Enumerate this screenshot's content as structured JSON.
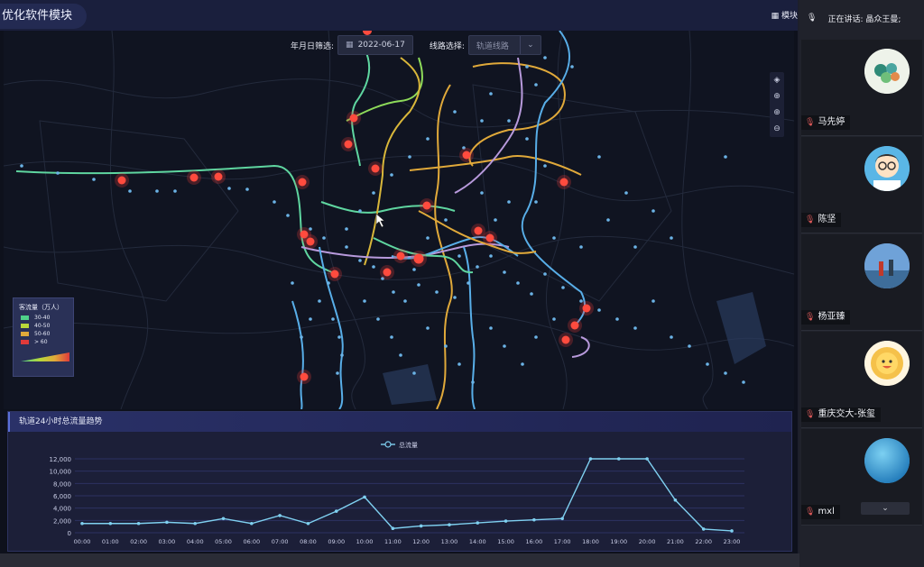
{
  "header": {
    "title": "优化软件模块",
    "module_label": "模块"
  },
  "filters": {
    "date_label": "年月日筛选:",
    "date_value": "2022-06-17",
    "line_label": "线路选择:",
    "line_placeholder": "轨道线路"
  },
  "legend": {
    "title": "客流量（万人）",
    "items": [
      {
        "label": "30-40",
        "color": "#4fd08a"
      },
      {
        "label": "40-50",
        "color": "#b8d83a"
      },
      {
        "label": "50-60",
        "color": "#e0a93a"
      },
      {
        "label": "> 60",
        "color": "#e03a3a"
      }
    ]
  },
  "map_icons": [
    "layers-icon",
    "locate-icon",
    "zoom-in-icon",
    "zoom-out-icon"
  ],
  "trend_panel": {
    "title": "轨道24小时总流量趋势"
  },
  "chart_data": {
    "type": "line",
    "legend": "总流量",
    "legend_position": "top-center",
    "categories": [
      "00:00",
      "01:00",
      "02:00",
      "03:00",
      "04:00",
      "05:00",
      "06:00",
      "07:00",
      "08:00",
      "09:00",
      "10:00",
      "11:00",
      "12:00",
      "13:00",
      "14:00",
      "15:00",
      "16:00",
      "17:00",
      "18:00",
      "19:00",
      "20:00",
      "21:00",
      "22:00",
      "23:00"
    ],
    "series": [
      {
        "name": "总流量",
        "values": [
          1500,
          1500,
          1500,
          1700,
          1500,
          2300,
          1500,
          2800,
          1500,
          3500,
          5800,
          700,
          1100,
          1300,
          1600,
          1900,
          2100,
          2300,
          12000,
          12000,
          12000,
          5300,
          600,
          300
        ]
      }
    ],
    "yticks": [
      "0",
      "2,000",
      "4,000",
      "6,000",
      "8,000",
      "10,000",
      "12,000"
    ],
    "ylim": [
      0,
      12000
    ],
    "grid": true,
    "color": "#7fd0f0"
  },
  "conference": {
    "speaking_label": "正在讲话: 晶众王曼;",
    "participants": [
      {
        "name": "马先婷",
        "avatar_color": "#cfe7e8"
      },
      {
        "name": "陈坚",
        "avatar_color": "#5ab6e6"
      },
      {
        "name": "杨亚臻",
        "avatar_color": "#5f90c8"
      },
      {
        "name": "重庆交大-张玺",
        "avatar_color": "#f5c14a"
      },
      {
        "name": "mxl",
        "avatar_color": "#3aa0d6"
      }
    ]
  }
}
